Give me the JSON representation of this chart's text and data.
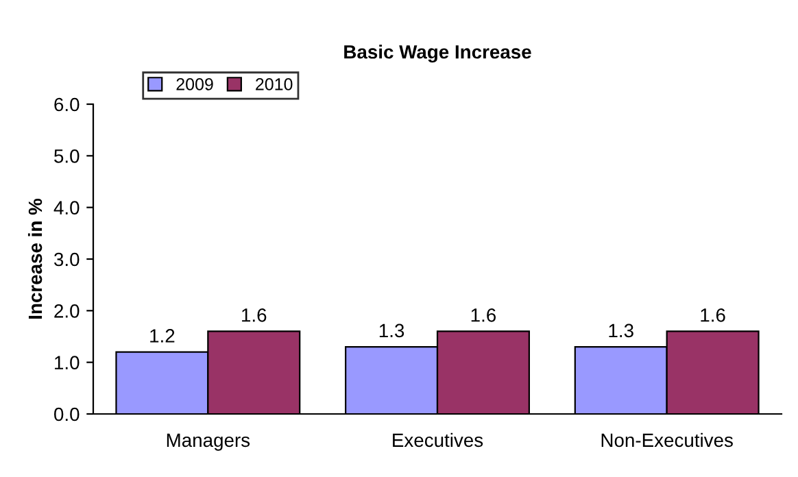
{
  "chart_data": {
    "type": "bar",
    "title": "Basic Wage Increase",
    "ylabel": "Increase in %",
    "categories": [
      "Managers",
      "Executives",
      "Non-Executives"
    ],
    "series": [
      {
        "name": "2009",
        "color": "#9999ff",
        "values": [
          1.2,
          1.3,
          1.3
        ]
      },
      {
        "name": "2010",
        "color": "#993366",
        "values": [
          1.6,
          1.6,
          1.6
        ]
      }
    ],
    "ylim": [
      0,
      6
    ],
    "yticks": [
      {
        "value": 0,
        "label": "0.0"
      },
      {
        "value": 1,
        "label": "1.0"
      },
      {
        "value": 2,
        "label": "2.0"
      },
      {
        "value": 3,
        "label": "3.0"
      },
      {
        "value": 4,
        "label": "4.0"
      },
      {
        "value": 5,
        "label": "5.0"
      },
      {
        "value": 6,
        "label": "6.0"
      }
    ],
    "grid": false,
    "legend": "top left",
    "data_labels": true
  }
}
